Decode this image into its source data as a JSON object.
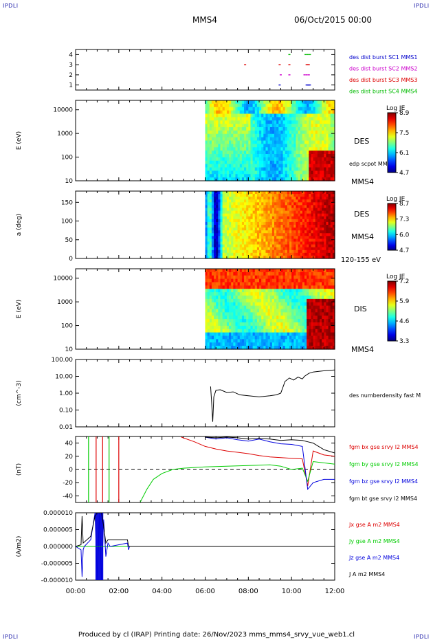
{
  "header": {
    "corner_label": "IPDLI",
    "spacecraft": "MMS4",
    "date": "06/Oct/2015 00:00"
  },
  "footer": {
    "text": "Produced by cl (IRAP)   Printing date: 26/Nov/2023   mms_mms4_srvy_vue_web1.cl"
  },
  "time_axis": {
    "ticks": [
      "00:00",
      "02:00",
      "04:00",
      "06:00",
      "08:00",
      "10:00",
      "12:00"
    ],
    "range_hours": [
      0,
      12
    ]
  },
  "colors": {
    "mms1": "#0000cc",
    "mms2": "#cc00cc",
    "mms3": "#dd0000",
    "mms4": "#00bb00",
    "bx": "#dd0000",
    "by": "#00cc00",
    "bz": "#0000dd",
    "bt": "#000000"
  },
  "chart_data": [
    {
      "type": "scatter",
      "panel": "burst",
      "yticks": [
        "1",
        "2",
        "3",
        "4"
      ],
      "ylim": [
        0.5,
        4.5
      ],
      "legend": [
        "des dist burst SC1 MMS1",
        "des dist burst SC2 MMS2",
        "des dist burst SC3 MMS3",
        "des dist burst SC4 MMS4"
      ],
      "series": [
        {
          "sc": 1,
          "x": [
            9.45,
            10.7,
            10.75,
            10.8,
            10.85
          ]
        },
        {
          "sc": 2,
          "x": [
            9.5,
            9.9,
            10.6,
            10.7,
            10.8
          ]
        },
        {
          "sc": 3,
          "x": [
            7.85,
            9.45,
            9.9,
            10.7,
            10.75,
            10.8
          ]
        },
        {
          "sc": 4,
          "x": [
            9.9,
            10.65,
            10.75,
            10.85
          ]
        }
      ]
    },
    {
      "type": "heatmap",
      "panel": "des_energy",
      "ylabel": "E (eV)",
      "yscale": "log",
      "ylim": [
        10,
        25000
      ],
      "yticks": [
        "10",
        "100",
        "1000",
        "10000"
      ],
      "data_start_hour": 6.0,
      "label": "DES",
      "sublabel": "edp scpot MMS4",
      "unit_label": "MMS4",
      "colorbar": {
        "title": "Log JE",
        "ticks": [
          "8.9",
          "7.5",
          "6.1",
          "4.7"
        ],
        "min": 4.7,
        "max": 8.9
      }
    },
    {
      "type": "heatmap",
      "panel": "des_pitch",
      "ylabel": "a (deg)",
      "ylim": [
        0,
        180
      ],
      "yticks": [
        "0",
        "50",
        "100",
        "150"
      ],
      "data_start_hour": 6.0,
      "label": "DES",
      "unit_label": "MMS4",
      "energy_range": "120-155 eV",
      "colorbar": {
        "title": "Log JE",
        "ticks": [
          "8.7",
          "7.3",
          "6.0",
          "4.7"
        ],
        "min": 4.7,
        "max": 8.7
      }
    },
    {
      "type": "heatmap",
      "panel": "dis_energy",
      "ylabel": "E (eV)",
      "yscale": "log",
      "ylim": [
        10,
        25000
      ],
      "yticks": [
        "10",
        "100",
        "1000",
        "10000"
      ],
      "data_start_hour": 6.0,
      "label": "DIS",
      "unit_label": "MMS4",
      "colorbar": {
        "title": "Log JE",
        "ticks": [
          "7.2",
          "5.9",
          "4.6",
          "3.3"
        ],
        "min": 3.3,
        "max": 7.2
      }
    },
    {
      "type": "line",
      "panel": "density",
      "ylabel": "(cm^-3)",
      "yscale": "log",
      "ylim": [
        0.01,
        100
      ],
      "yticks": [
        "0.01",
        "0.10",
        "1.00",
        "10.00",
        "100.00"
      ],
      "legend": [
        "des numberdensity fast M"
      ],
      "series": [
        {
          "name": "des numberdensity fast M",
          "x": [
            6.25,
            6.3,
            6.35,
            6.4,
            6.5,
            6.7,
            7.0,
            7.3,
            7.6,
            8.0,
            8.5,
            9.0,
            9.3,
            9.5,
            9.7,
            9.9,
            10.1,
            10.3,
            10.5,
            10.6,
            10.8,
            11.0,
            11.3,
            11.6,
            12.0
          ],
          "values": [
            2.5,
            0.3,
            0.02,
            0.6,
            1.5,
            1.6,
            1.1,
            1.2,
            0.8,
            0.7,
            0.6,
            0.7,
            0.8,
            1.0,
            5.0,
            8.0,
            6.0,
            9.0,
            7.0,
            10.0,
            15.0,
            18.0,
            20.0,
            22.0,
            24.0
          ]
        }
      ]
    },
    {
      "type": "line",
      "panel": "magnetic_field",
      "ylabel": "(nT)",
      "ylim": [
        -50,
        50
      ],
      "yticks": [
        "-40",
        "-20",
        "0",
        "20",
        "40"
      ],
      "legend": [
        "fgm bx gse srvy l2 MMS4",
        "fgm by gse srvy l2 MMS4",
        "fgm bz gse srvy l2 MMS4",
        "fgm bt gse srvy l2 MMS4"
      ],
      "series": [
        {
          "name": "fgm bx gse srvy l2 MMS4",
          "x": [
            4.9,
            5.5,
            6.0,
            6.5,
            7.0,
            7.5,
            8.0,
            8.5,
            9.0,
            9.5,
            10.0,
            10.5,
            10.75,
            11.0,
            11.5,
            12.0
          ],
          "values": [
            49,
            42,
            35,
            31,
            28,
            26,
            24,
            21,
            19,
            18,
            17,
            16,
            -25,
            28,
            22,
            20
          ]
        },
        {
          "name": "fgm by gse srvy l2 MMS4",
          "x": [
            3.0,
            3.3,
            3.6,
            4.0,
            4.5,
            5.0,
            5.5,
            6.0,
            7.0,
            8.0,
            9.0,
            9.5,
            10.0,
            10.5,
            10.75,
            11.0,
            12.0
          ],
          "values": [
            -49,
            -30,
            -15,
            -6,
            0,
            2,
            3,
            4,
            5,
            6,
            7,
            5,
            0,
            2,
            -18,
            12,
            8
          ]
        },
        {
          "name": "fgm bz gse srvy l2 MMS4",
          "x": [
            6.0,
            6.5,
            7.0,
            7.5,
            8.0,
            8.5,
            9.0,
            9.5,
            10.0,
            10.5,
            10.75,
            11.0,
            11.5,
            12.0
          ],
          "values": [
            49,
            46,
            48,
            45,
            43,
            46,
            42,
            39,
            38,
            35,
            -30,
            -20,
            -15,
            -15
          ]
        },
        {
          "name": "fgm bt gse srvy l2 MMS4",
          "x": [
            6.0,
            6.5,
            7.0,
            7.5,
            8.0,
            8.5,
            9.0,
            9.5,
            10.0,
            10.5,
            10.75,
            11.0,
            11.5,
            12.0
          ],
          "values": [
            49,
            48,
            49,
            48,
            46,
            47,
            46,
            44,
            45,
            44,
            42,
            40,
            30,
            25
          ]
        }
      ]
    },
    {
      "type": "line",
      "panel": "current_density",
      "ylabel": "(A/m2)",
      "ylim": [
        -0.0001,
        0.0001
      ],
      "yticks": [
        "-0.000010",
        "-0.000005",
        "0.000000",
        "0.000005",
        "0.000010"
      ],
      "legend": [
        "Jx gse A m2 MMS4",
        "Jy gse A m2 MMS4",
        "Jz gse A m2 MMS4",
        "J A m2 MMS4"
      ],
      "series": [
        {
          "name": "Jz gse A m2 MMS4",
          "x": [
            0.0,
            0.25,
            0.3,
            0.35,
            0.4,
            0.7,
            0.9,
            1.0,
            1.1,
            1.2,
            1.3,
            1.4,
            1.5,
            1.6,
            2.4,
            2.45,
            2.5,
            12.0
          ],
          "values": [
            0,
            -1e-05,
            -9e-05,
            -1e-05,
            0,
            2e-05,
            0.0001,
            -0.0001,
            0.0001,
            -0.0001,
            8e-05,
            -3e-05,
            1e-05,
            0,
            1e-05,
            -1e-05,
            0,
            0
          ]
        },
        {
          "name": "J A m2 MMS4",
          "x": [
            0.0,
            0.25,
            0.3,
            0.35,
            0.7,
            0.9,
            1.0,
            1.2,
            1.3,
            1.4,
            1.5,
            2.4,
            2.45,
            2.5,
            12.0
          ],
          "values": [
            0,
            5e-06,
            9e-05,
            1e-05,
            3e-05,
            9e-05,
            0.0001,
            0.0001,
            6e-05,
            1e-05,
            2e-05,
            2e-05,
            1e-06,
            0,
            0
          ]
        }
      ]
    }
  ]
}
